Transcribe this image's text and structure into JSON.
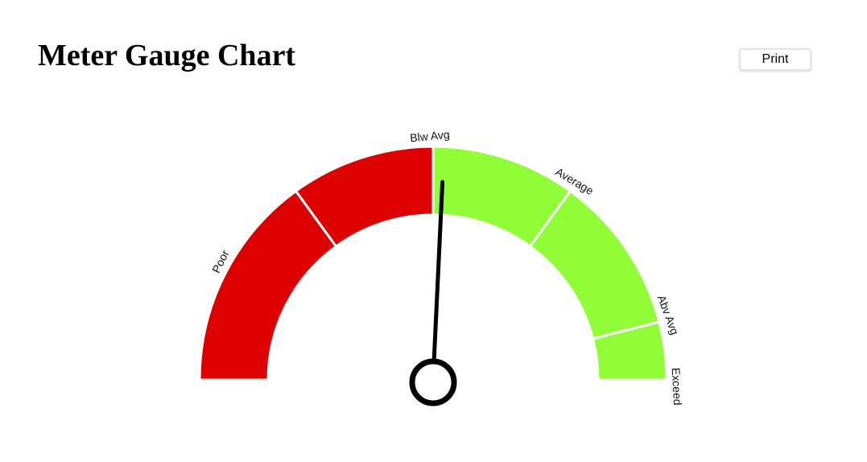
{
  "page": {
    "title": "Meter Gauge Chart",
    "print_label": "Print"
  },
  "chart_data": {
    "type": "gauge",
    "min": 0,
    "max": 100,
    "segments": [
      {
        "label": "Poor",
        "from": 0,
        "to": 30,
        "color": "#dd0000"
      },
      {
        "label": "Blw Avg",
        "from": 30,
        "to": 50,
        "color": "#dd0000"
      },
      {
        "label": "Average",
        "from": 50,
        "to": 70,
        "color": "#91fd38"
      },
      {
        "label": "Abv Avg",
        "from": 70,
        "to": 92,
        "color": "#91fd38"
      },
      {
        "label": "Exceed",
        "from": 92,
        "to": 100,
        "color": "#91fd38"
      }
    ],
    "value": 51.5,
    "needle_color": "#000000"
  }
}
